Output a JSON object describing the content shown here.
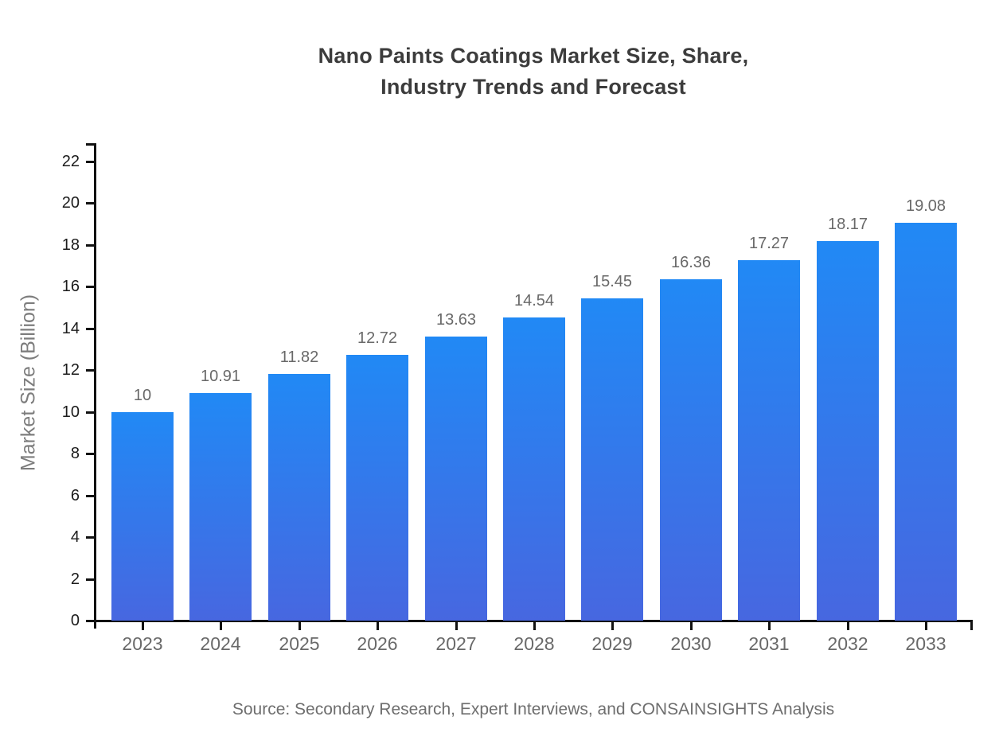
{
  "chart": {
    "title_line1": "Nano Paints Coatings Market Size, Share,",
    "title_line2": "Industry Trends and Forecast",
    "source_note": "Source: Secondary Research, Expert Interviews, and CONSAINSIGHTS Analysis"
  },
  "chart_data": {
    "type": "bar",
    "title": "Nano Paints Coatings Market Size, Share, Industry Trends and Forecast",
    "xlabel": "",
    "ylabel": "Market Size (Billion)",
    "categories": [
      "2023",
      "2024",
      "2025",
      "2026",
      "2027",
      "2028",
      "2029",
      "2030",
      "2031",
      "2032",
      "2033"
    ],
    "values": [
      10,
      10.91,
      11.82,
      12.72,
      13.63,
      14.54,
      15.45,
      16.36,
      17.27,
      18.17,
      19.08
    ],
    "value_labels": [
      "10",
      "10.91",
      "11.82",
      "12.72",
      "13.63",
      "14.54",
      "15.45",
      "16.36",
      "17.27",
      "18.17",
      "19.08"
    ],
    "ylim": [
      0,
      22
    ],
    "ytick_labels": [
      "0",
      "2",
      "4",
      "6",
      "8",
      "10",
      "12",
      "14",
      "16",
      "18",
      "20",
      "22"
    ],
    "grid": false,
    "legend_position": "none",
    "source": "Source: Secondary Research, Expert Interviews, and CONSAINSIGHTS Analysis"
  },
  "colors": {
    "background": "#ffffff",
    "bar_gradient_top": "#2189f5",
    "bar_gradient_bottom": "#4767e0",
    "axis": "#111111",
    "title_text": "#3c3c3c",
    "value_label_text": "#696969",
    "x_tick_label_text": "#696969",
    "y_tick_label_text": "#1c1c1c",
    "y_axis_title_text": "#7d7d7d",
    "source_text": "#6e6e6e"
  }
}
